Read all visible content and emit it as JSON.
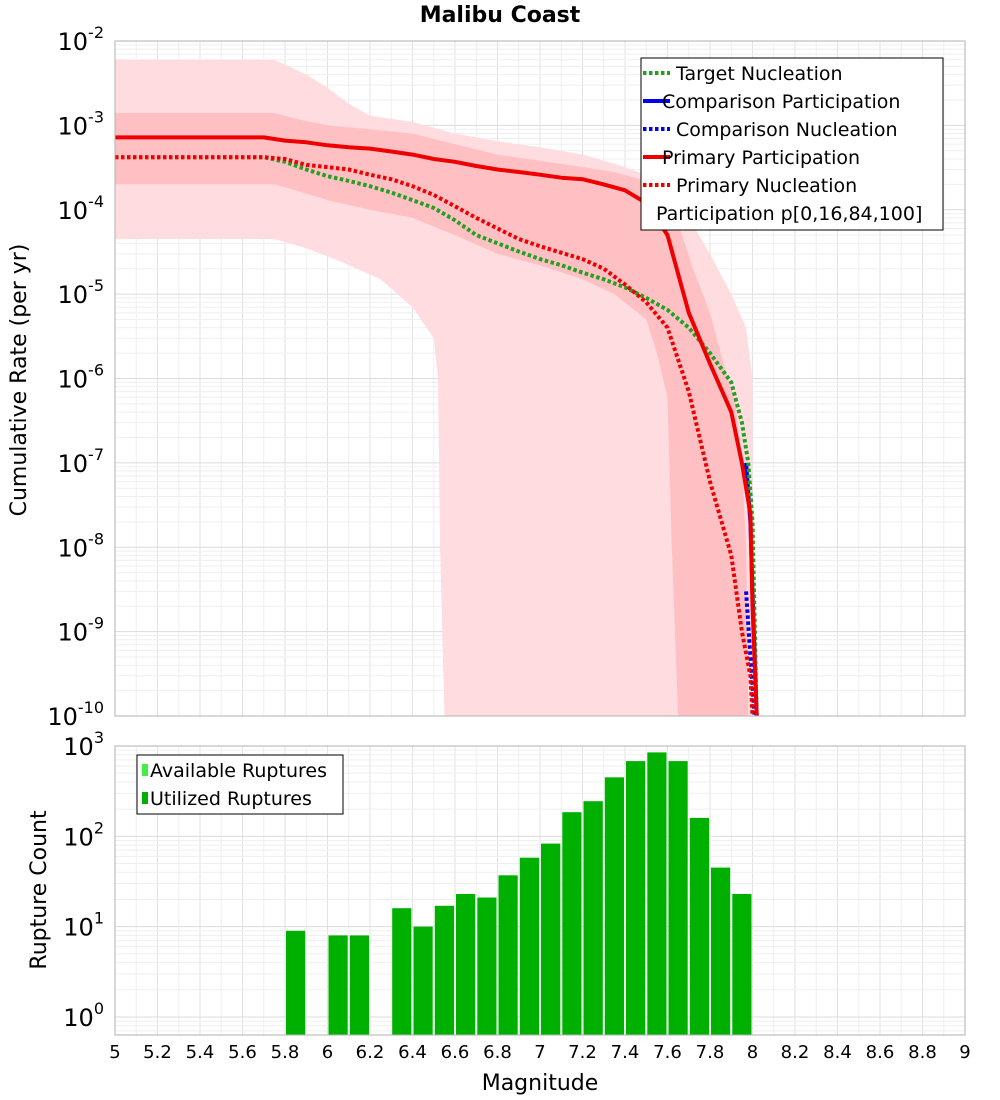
{
  "chart_data": [
    {
      "type": "line",
      "title": "Malibu Coast",
      "xlabel": "",
      "ylabel": "Cumulative Rate (per yr)",
      "xlim": [
        5,
        9
      ],
      "ylim_exp": [
        -10,
        -2
      ],
      "yscale": "log",
      "y_ticks": [
        {
          "base": "10",
          "exp": "-10"
        },
        {
          "base": "10",
          "exp": "-9"
        },
        {
          "base": "10",
          "exp": "-8"
        },
        {
          "base": "10",
          "exp": "-7"
        },
        {
          "base": "10",
          "exp": "-6"
        },
        {
          "base": "10",
          "exp": "-5"
        },
        {
          "base": "10",
          "exp": "-4"
        },
        {
          "base": "10",
          "exp": "-3"
        },
        {
          "base": "10",
          "exp": "-2"
        }
      ],
      "legend": {
        "position": "top-right",
        "entries": [
          {
            "label": "Target Nucleation",
            "color": "#22a022",
            "style": "dotted"
          },
          {
            "label": "Comparison Participation",
            "color": "#0000ee",
            "style": "solid"
          },
          {
            "label": "Comparison Nucleation",
            "color": "#0000ee",
            "style": "dotted"
          },
          {
            "label": "Primary Participation",
            "color": "#ee0000",
            "style": "solid"
          },
          {
            "label": "Primary Nucleation",
            "color": "#ee0000",
            "style": "dotted"
          },
          {
            "label": "Participation p[0,16,84,100]",
            "color": "",
            "style": "none"
          }
        ]
      },
      "bands": [
        {
          "name": "p0-p100",
          "color": "#ffdcdf",
          "upper": [
            [
              5.0,
              0.006
            ],
            [
              5.5,
              0.006
            ],
            [
              5.75,
              0.006
            ],
            [
              5.9,
              0.004
            ],
            [
              6.0,
              0.0028
            ],
            [
              6.1,
              0.0018
            ],
            [
              6.2,
              0.0013
            ],
            [
              6.4,
              0.0011
            ],
            [
              6.6,
              0.0008
            ],
            [
              6.8,
              0.00065
            ],
            [
              7.0,
              0.00055
            ],
            [
              7.2,
              0.00045
            ],
            [
              7.35,
              0.00035
            ],
            [
              7.5,
              0.00026
            ],
            [
              7.6,
              0.00016
            ],
            [
              7.7,
              8e-05
            ],
            [
              7.8,
              3e-05
            ],
            [
              7.9,
              1e-05
            ],
            [
              7.97,
              4e-06
            ],
            [
              8.0,
              1e-06
            ],
            [
              8.0,
              1e-10
            ]
          ],
          "lower": [
            [
              5.0,
              4.5e-05
            ],
            [
              5.75,
              4.5e-05
            ],
            [
              5.9,
              3.5e-05
            ],
            [
              6.05,
              2.5e-05
            ],
            [
              6.25,
              1.5e-05
            ],
            [
              6.4,
              7e-06
            ],
            [
              6.5,
              3e-06
            ],
            [
              6.52,
              1e-06
            ],
            [
              6.53,
              1e-08
            ],
            [
              6.55,
              1e-10
            ]
          ]
        },
        {
          "name": "p16-p84",
          "color": "#ffc0c4",
          "upper": [
            [
              5.0,
              0.0014
            ],
            [
              5.75,
              0.0014
            ],
            [
              5.85,
              0.0012
            ],
            [
              6.0,
              0.001
            ],
            [
              6.2,
              0.0009
            ],
            [
              6.4,
              0.0008
            ],
            [
              6.6,
              0.0006
            ],
            [
              6.8,
              0.00045
            ],
            [
              7.0,
              0.00038
            ],
            [
              7.2,
              0.00032
            ],
            [
              7.35,
              0.00028
            ],
            [
              7.5,
              0.00022
            ],
            [
              7.6,
              0.00013
            ],
            [
              7.65,
              7e-05
            ],
            [
              7.72,
              2e-05
            ],
            [
              7.8,
              6e-06
            ],
            [
              7.85,
              2e-06
            ],
            [
              7.92,
              5e-07
            ],
            [
              7.95,
              1e-07
            ],
            [
              7.97,
              1e-08
            ],
            [
              7.98,
              1e-10
            ]
          ],
          "lower": [
            [
              5.0,
              0.0002
            ],
            [
              5.75,
              0.0002
            ],
            [
              5.85,
              0.00017
            ],
            [
              6.0,
              0.00013
            ],
            [
              6.2,
              0.0001
            ],
            [
              6.4,
              8e-05
            ],
            [
              6.6,
              5e-05
            ],
            [
              6.8,
              3e-05
            ],
            [
              7.0,
              2.2e-05
            ],
            [
              7.2,
              1.5e-05
            ],
            [
              7.35,
              1e-05
            ],
            [
              7.5,
              5e-06
            ],
            [
              7.55,
              2e-06
            ],
            [
              7.6,
              6e-07
            ],
            [
              7.62,
              1e-08
            ],
            [
              7.65,
              1e-10
            ]
          ]
        }
      ],
      "series": [
        {
          "name": "Target Nucleation",
          "color": "#22a022",
          "style": "dotted",
          "points": [
            [
              5.0,
              0.00042
            ],
            [
              5.7,
              0.00042
            ],
            [
              5.8,
              0.00037
            ],
            [
              5.9,
              0.0003
            ],
            [
              6.0,
              0.00025
            ],
            [
              6.1,
              0.00022
            ],
            [
              6.2,
              0.00019
            ],
            [
              6.3,
              0.00016
            ],
            [
              6.4,
              0.00013
            ],
            [
              6.5,
              0.000105
            ],
            [
              6.6,
              7.5e-05
            ],
            [
              6.7,
              5e-05
            ],
            [
              6.8,
              4e-05
            ],
            [
              6.9,
              3.2e-05
            ],
            [
              7.0,
              2.6e-05
            ],
            [
              7.1,
              2.2e-05
            ],
            [
              7.2,
              1.8e-05
            ],
            [
              7.3,
              1.5e-05
            ],
            [
              7.4,
              1.2e-05
            ],
            [
              7.5,
              9e-06
            ],
            [
              7.6,
              6.5e-06
            ],
            [
              7.7,
              4e-06
            ],
            [
              7.8,
              2e-06
            ],
            [
              7.9,
              9e-07
            ],
            [
              7.95,
              3e-07
            ],
            [
              7.98,
              1e-07
            ],
            [
              8.0,
              2e-08
            ],
            [
              8.02,
              1e-10
            ]
          ]
        },
        {
          "name": "Comparison Participation",
          "color": "#0000ee",
          "style": "solid",
          "points": [
            [
              7.97,
              1e-07
            ],
            [
              7.99,
              2e-08
            ],
            [
              8.0,
              3e-09
            ],
            [
              8.02,
              1e-10
            ]
          ]
        },
        {
          "name": "Comparison Nucleation",
          "color": "#0000ee",
          "style": "dotted",
          "points": [
            [
              7.97,
              3e-09
            ],
            [
              7.99,
              5e-10
            ],
            [
              8.01,
              1e-10
            ]
          ]
        },
        {
          "name": "Primary Participation",
          "color": "#ee0000",
          "style": "solid",
          "points": [
            [
              5.0,
              0.00072
            ],
            [
              5.7,
              0.00072
            ],
            [
              5.8,
              0.00066
            ],
            [
              5.9,
              0.00063
            ],
            [
              6.0,
              0.00058
            ],
            [
              6.1,
              0.00055
            ],
            [
              6.2,
              0.00053
            ],
            [
              6.3,
              0.00049
            ],
            [
              6.4,
              0.00045
            ],
            [
              6.5,
              0.0004
            ],
            [
              6.6,
              0.00037
            ],
            [
              6.7,
              0.00033
            ],
            [
              6.8,
              0.0003
            ],
            [
              6.9,
              0.00028
            ],
            [
              7.0,
              0.00026
            ],
            [
              7.1,
              0.00024
            ],
            [
              7.2,
              0.00023
            ],
            [
              7.3,
              0.0002
            ],
            [
              7.4,
              0.00017
            ],
            [
              7.5,
              0.00012
            ],
            [
              7.6,
              5e-05
            ],
            [
              7.7,
              6e-06
            ],
            [
              7.8,
              1.5e-06
            ],
            [
              7.9,
              4e-07
            ],
            [
              7.95,
              1e-07
            ],
            [
              7.99,
              2.5e-08
            ],
            [
              8.0,
              2e-09
            ],
            [
              8.02,
              1e-10
            ]
          ]
        },
        {
          "name": "Primary Nucleation",
          "color": "#ee0000",
          "style": "dotted",
          "points": [
            [
              5.0,
              0.00042
            ],
            [
              5.7,
              0.00042
            ],
            [
              5.8,
              0.0004
            ],
            [
              5.9,
              0.00034
            ],
            [
              6.0,
              0.00032
            ],
            [
              6.1,
              0.0003
            ],
            [
              6.2,
              0.00026
            ],
            [
              6.3,
              0.00023
            ],
            [
              6.4,
              0.00019
            ],
            [
              6.5,
              0.00015
            ],
            [
              6.6,
              0.00011
            ],
            [
              6.7,
              8e-05
            ],
            [
              6.8,
              6e-05
            ],
            [
              6.9,
              4.5e-05
            ],
            [
              7.0,
              3.7e-05
            ],
            [
              7.1,
              3.1e-05
            ],
            [
              7.2,
              2.6e-05
            ],
            [
              7.3,
              2e-05
            ],
            [
              7.4,
              1.3e-05
            ],
            [
              7.5,
              8e-06
            ],
            [
              7.6,
              4e-06
            ],
            [
              7.7,
              7e-07
            ],
            [
              7.8,
              6e-08
            ],
            [
              7.9,
              8e-09
            ],
            [
              7.95,
              1e-09
            ],
            [
              7.99,
              3e-10
            ],
            [
              8.0,
              1e-10
            ]
          ]
        }
      ]
    },
    {
      "type": "bar",
      "xlabel": "Magnitude",
      "ylabel": "Rupture Count",
      "yscale": "log",
      "xlim": [
        5,
        9
      ],
      "ylim_exp": [
        -0.2,
        3
      ],
      "y_ticks": [
        {
          "base": "10",
          "exp": "0"
        },
        {
          "base": "10",
          "exp": "1"
        },
        {
          "base": "10",
          "exp": "2"
        },
        {
          "base": "10",
          "exp": "3"
        }
      ],
      "x_ticks": [
        "5",
        "5.2",
        "5.4",
        "5.6",
        "5.8",
        "6",
        "6.2",
        "6.4",
        "6.6",
        "6.8",
        "7",
        "7.2",
        "7.4",
        "7.6",
        "7.8",
        "8",
        "8.2",
        "8.4",
        "8.6",
        "8.8",
        "9"
      ],
      "bar_width": 0.1,
      "legend": {
        "position": "top-left",
        "entries": [
          {
            "label": "Available Ruptures",
            "color": "#44ee44"
          },
          {
            "label": "Utilized Ruptures",
            "color": "#00b000"
          }
        ]
      },
      "series": [
        {
          "name": "Utilized Ruptures",
          "color": "#00b000",
          "bins": [
            5.85,
            6.05,
            6.15,
            6.35,
            6.45,
            6.55,
            6.65,
            6.75,
            6.85,
            6.95,
            7.05,
            7.15,
            7.25,
            7.35,
            7.45,
            7.55,
            7.65,
            7.75,
            7.85,
            7.95
          ],
          "values": [
            9,
            8,
            8,
            16,
            10,
            17,
            23,
            21,
            37,
            58,
            83,
            185,
            245,
            450,
            680,
            850,
            680,
            160,
            45,
            23
          ]
        }
      ]
    }
  ]
}
